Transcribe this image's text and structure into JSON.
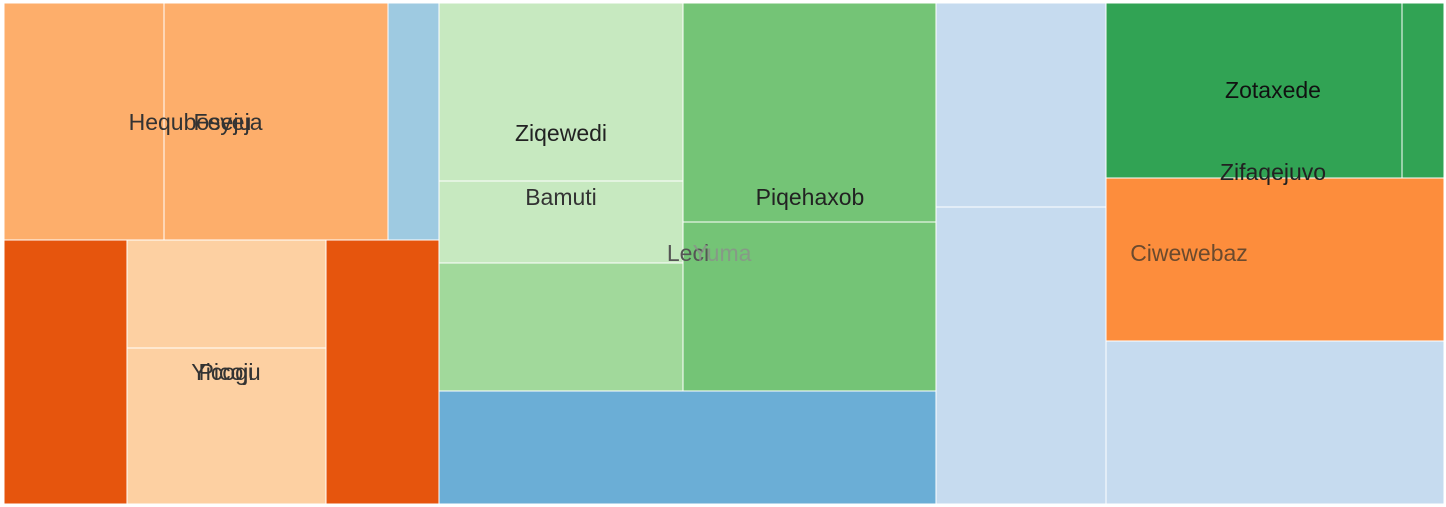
{
  "chart_data": {
    "type": "treemap",
    "total": 100,
    "tiles": [
      {
        "id": "t1",
        "label": "Hequboseju",
        "value": 4.98,
        "color": "#fdae6b",
        "text_color": "#333333"
      },
      {
        "id": "t2",
        "label": "Feyeja",
        "value": 6.84,
        "color": "#fdae6b",
        "text_color": "#333333"
      },
      {
        "id": "t3",
        "label": "",
        "value": 1.33,
        "color": "#9ecae1"
      },
      {
        "id": "t4",
        "label": "",
        "value": 4.46,
        "color": "#e6550d"
      },
      {
        "id": "t5",
        "label": "Yicogu",
        "value": 2.83,
        "color": "#fdd0a2",
        "text_color": "#333333"
      },
      {
        "id": "t6",
        "label": "Picoji",
        "value": 4.22,
        "color": "#fdd0a2",
        "text_color": "#333333"
      },
      {
        "id": "t7",
        "label": "",
        "value": 4.06,
        "color": "#e6550d"
      },
      {
        "id": "t8",
        "label": "Ziqewedi",
        "value": 5.99,
        "color": "#c7e9c0",
        "text_color": "#222222"
      },
      {
        "id": "t9",
        "label": "Bamuti",
        "value": 2.74,
        "color": "#c7e9c0",
        "text_color": "#333333"
      },
      {
        "id": "t10",
        "label": "Piqehaxob",
        "value": 7.59,
        "color": "#74c476",
        "text_color": "#222222"
      },
      {
        "id": "t11",
        "label": "",
        "value": 4.27,
        "color": "#a1d99b"
      },
      {
        "id": "t12",
        "label": "",
        "value": 5.86,
        "color": "#74c476"
      },
      {
        "id": "t13",
        "label": "",
        "value": 7.66,
        "color": "#6baed6"
      },
      {
        "id": "t14",
        "label": "",
        "value": 4.79,
        "color": "#c6dbef"
      },
      {
        "id": "t15",
        "label": "",
        "value": 6.95,
        "color": "#c6dbef"
      },
      {
        "id": "t16",
        "label": "Zotaxede",
        "value": 7.13,
        "color": "#31a354",
        "text_color": "#111111"
      },
      {
        "id": "t17",
        "label": "",
        "value": 0.96,
        "color": "#31a354"
      },
      {
        "id": "t18",
        "label": "Ciwewebaz",
        "value": 6.76,
        "color": "#fd8d3c",
        "text_color": "#6b4a2e"
      },
      {
        "id": "t19",
        "label": "",
        "value": 6.69,
        "color": "#c6dbef"
      }
    ],
    "overlay_labels": [
      {
        "id": "o1",
        "label": "Leci",
        "color": "#555555",
        "opacity": 1
      },
      {
        "id": "o2",
        "label": "Yuma",
        "color": "#8c8c8c",
        "opacity": 0.75
      },
      {
        "id": "o3",
        "label": "Zifaqejuvo",
        "color": "#222222",
        "opacity": 1
      }
    ]
  }
}
